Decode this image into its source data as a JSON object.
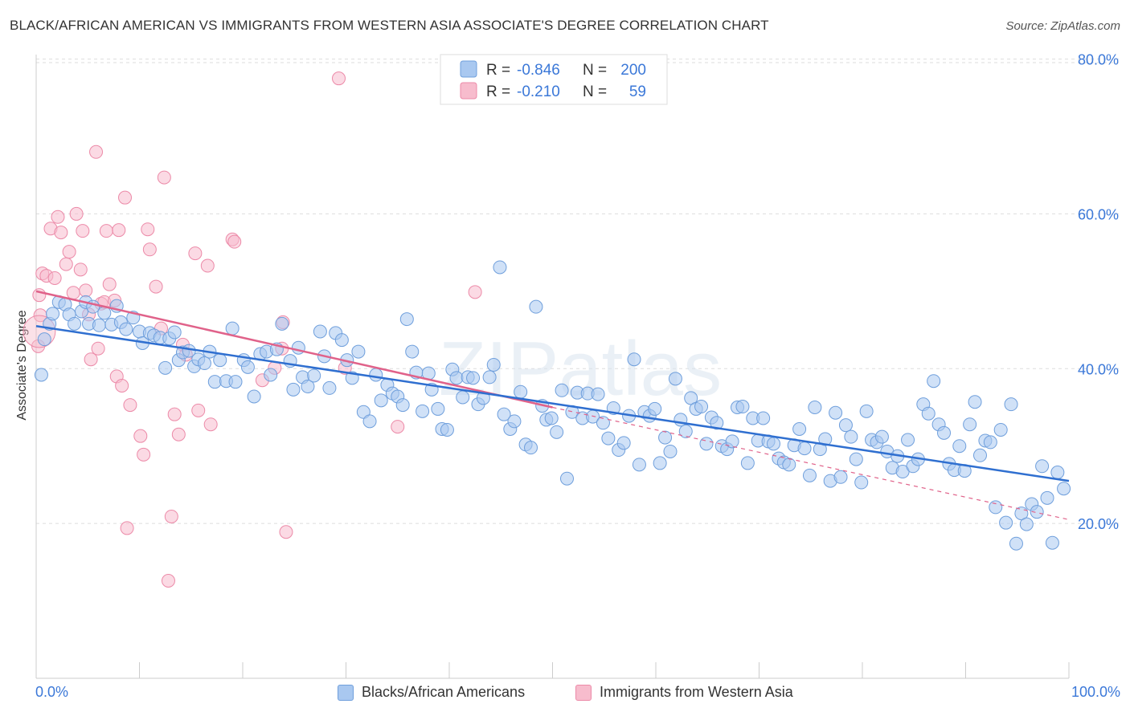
{
  "title": "BLACK/AFRICAN AMERICAN VS IMMIGRANTS FROM WESTERN ASIA ASSOCIATE'S DEGREE CORRELATION CHART",
  "source": "Source: ZipAtlas.com",
  "watermark": "ZIPatlas",
  "colors": {
    "blue_fill": "#a9c8f0",
    "blue_stroke": "#6f9fdc",
    "blue_line": "#2f6fd0",
    "pink_fill": "#f7bccd",
    "pink_stroke": "#ec8aa8",
    "pink_line": "#e0628a",
    "axis_text": "#3b78d8",
    "grid": "#dddddd"
  },
  "legend_top": {
    "rows": [
      {
        "r_label": "R =",
        "r_value": "-0.846",
        "n_label": "N =",
        "n_value": "200",
        "series": "blue"
      },
      {
        "r_label": "R =",
        "r_value": "-0.210",
        "n_label": "N =",
        "n_value": "59",
        "series": "pink"
      }
    ]
  },
  "legend_bottom": [
    {
      "label": "Blacks/African Americans",
      "series": "blue"
    },
    {
      "label": "Immigrants from Western Asia",
      "series": "pink"
    }
  ],
  "chart_data": {
    "type": "scatter",
    "title": "BLACK/AFRICAN AMERICAN VS IMMIGRANTS FROM WESTERN ASIA ASSOCIATE'S DEGREE CORRELATION CHART",
    "xlabel": "",
    "ylabel": "Associate's Degree",
    "xlim": [
      0,
      100
    ],
    "ylim": [
      0,
      84
    ],
    "x_tick_labels": [
      "0.0%",
      "100.0%"
    ],
    "y_ticks": [
      20,
      40,
      60,
      80
    ],
    "y_tick_labels": [
      "20.0%",
      "40.0%",
      "60.0%",
      "80.0%"
    ],
    "grid": true,
    "legend_position": "top-center",
    "series": [
      {
        "name": "Blacks/African Americans",
        "color": "#a9c8f0",
        "r": -0.846,
        "n": 200,
        "trend": {
          "x": [
            0,
            100
          ],
          "y": [
            45.5,
            25.5
          ]
        },
        "points": [
          [
            0.5,
            39.2
          ],
          [
            0.8,
            43.8
          ],
          [
            1.3,
            45.8
          ],
          [
            1.6,
            47.1
          ],
          [
            2.2,
            48.6
          ],
          [
            2.8,
            48.3
          ],
          [
            3.2,
            47.0
          ],
          [
            3.7,
            45.8
          ],
          [
            4.4,
            47.4
          ],
          [
            4.8,
            48.6
          ],
          [
            5.1,
            45.8
          ],
          [
            5.5,
            48.0
          ],
          [
            6.1,
            45.6
          ],
          [
            6.6,
            47.2
          ],
          [
            7.3,
            45.7
          ],
          [
            7.8,
            48.1
          ],
          [
            8.2,
            46.0
          ],
          [
            8.7,
            45.1
          ],
          [
            9.4,
            46.6
          ],
          [
            10.0,
            44.8
          ],
          [
            10.3,
            43.3
          ],
          [
            11.0,
            44.6
          ],
          [
            11.4,
            44.3
          ],
          [
            12.0,
            44.0
          ],
          [
            12.5,
            40.1
          ],
          [
            12.9,
            43.9
          ],
          [
            13.4,
            44.7
          ],
          [
            13.8,
            41.1
          ],
          [
            14.2,
            42.1
          ],
          [
            14.8,
            42.3
          ],
          [
            15.3,
            40.3
          ],
          [
            15.7,
            41.2
          ],
          [
            16.3,
            40.7
          ],
          [
            16.8,
            42.2
          ],
          [
            17.3,
            38.3
          ],
          [
            17.8,
            41.1
          ],
          [
            18.4,
            38.4
          ],
          [
            19.0,
            45.2
          ],
          [
            19.3,
            38.3
          ],
          [
            20.1,
            41.1
          ],
          [
            20.5,
            40.2
          ],
          [
            21.1,
            36.4
          ],
          [
            21.7,
            41.9
          ],
          [
            22.3,
            42.2
          ],
          [
            22.7,
            39.2
          ],
          [
            23.3,
            42.5
          ],
          [
            23.8,
            45.8
          ],
          [
            24.6,
            41.0
          ],
          [
            24.9,
            37.3
          ],
          [
            25.4,
            42.7
          ],
          [
            25.8,
            38.9
          ],
          [
            26.3,
            37.7
          ],
          [
            26.9,
            39.1
          ],
          [
            27.5,
            44.8
          ],
          [
            27.9,
            41.6
          ],
          [
            28.4,
            37.5
          ],
          [
            29.0,
            44.6
          ],
          [
            29.6,
            43.7
          ],
          [
            30.1,
            41.1
          ],
          [
            30.6,
            38.8
          ],
          [
            31.2,
            42.2
          ],
          [
            31.7,
            34.4
          ],
          [
            32.3,
            33.2
          ],
          [
            32.9,
            39.2
          ],
          [
            33.4,
            35.9
          ],
          [
            34.0,
            37.9
          ],
          [
            34.5,
            36.8
          ],
          [
            35.0,
            36.4
          ],
          [
            35.5,
            35.3
          ],
          [
            35.9,
            46.4
          ],
          [
            36.4,
            42.2
          ],
          [
            36.8,
            39.5
          ],
          [
            37.4,
            34.5
          ],
          [
            38.0,
            39.4
          ],
          [
            38.3,
            37.3
          ],
          [
            38.9,
            34.8
          ],
          [
            39.3,
            32.2
          ],
          [
            39.8,
            32.1
          ],
          [
            40.3,
            39.9
          ],
          [
            40.7,
            38.8
          ],
          [
            41.3,
            36.3
          ],
          [
            41.8,
            38.9
          ],
          [
            42.3,
            38.8
          ],
          [
            42.8,
            35.4
          ],
          [
            43.3,
            36.2
          ],
          [
            43.9,
            38.9
          ],
          [
            44.3,
            40.5
          ],
          [
            44.9,
            53.1
          ],
          [
            45.3,
            34.1
          ],
          [
            45.9,
            32.2
          ],
          [
            46.3,
            33.2
          ],
          [
            46.9,
            37.0
          ],
          [
            47.4,
            30.2
          ],
          [
            47.9,
            29.8
          ],
          [
            48.4,
            48.0
          ],
          [
            49.0,
            35.2
          ],
          [
            49.4,
            33.4
          ],
          [
            49.9,
            33.6
          ],
          [
            50.4,
            31.8
          ],
          [
            50.9,
            37.2
          ],
          [
            51.4,
            25.8
          ],
          [
            51.9,
            34.4
          ],
          [
            52.4,
            36.9
          ],
          [
            52.9,
            33.6
          ],
          [
            53.4,
            36.8
          ],
          [
            53.9,
            33.8
          ],
          [
            54.4,
            36.7
          ],
          [
            54.9,
            33.0
          ],
          [
            55.4,
            31.0
          ],
          [
            55.9,
            34.9
          ],
          [
            56.4,
            29.5
          ],
          [
            56.9,
            30.4
          ],
          [
            57.4,
            33.9
          ],
          [
            57.9,
            41.2
          ],
          [
            58.4,
            27.6
          ],
          [
            58.9,
            34.4
          ],
          [
            59.4,
            33.9
          ],
          [
            59.9,
            34.8
          ],
          [
            60.4,
            27.8
          ],
          [
            60.9,
            31.1
          ],
          [
            61.4,
            29.3
          ],
          [
            61.9,
            38.7
          ],
          [
            62.4,
            33.4
          ],
          [
            62.9,
            31.9
          ],
          [
            63.4,
            36.2
          ],
          [
            63.9,
            34.8
          ],
          [
            64.4,
            35.1
          ],
          [
            64.9,
            30.3
          ],
          [
            65.4,
            33.7
          ],
          [
            65.9,
            33.0
          ],
          [
            66.4,
            30.0
          ],
          [
            66.9,
            29.6
          ],
          [
            67.4,
            30.6
          ],
          [
            67.9,
            35.0
          ],
          [
            68.4,
            35.1
          ],
          [
            68.9,
            27.8
          ],
          [
            69.4,
            33.6
          ],
          [
            69.9,
            30.7
          ],
          [
            70.4,
            33.6
          ],
          [
            70.9,
            30.6
          ],
          [
            71.4,
            30.3
          ],
          [
            71.9,
            28.4
          ],
          [
            72.4,
            27.9
          ],
          [
            72.9,
            27.6
          ],
          [
            73.4,
            30.1
          ],
          [
            73.9,
            32.2
          ],
          [
            74.4,
            29.7
          ],
          [
            74.9,
            26.2
          ],
          [
            75.4,
            35.0
          ],
          [
            75.9,
            29.6
          ],
          [
            76.4,
            30.9
          ],
          [
            76.9,
            25.5
          ],
          [
            77.4,
            34.3
          ],
          [
            77.9,
            26.0
          ],
          [
            78.4,
            32.7
          ],
          [
            78.9,
            31.2
          ],
          [
            79.4,
            28.3
          ],
          [
            79.9,
            25.3
          ],
          [
            80.4,
            34.5
          ],
          [
            80.9,
            30.8
          ],
          [
            81.4,
            30.5
          ],
          [
            81.9,
            31.2
          ],
          [
            82.4,
            29.3
          ],
          [
            82.9,
            27.2
          ],
          [
            83.4,
            28.7
          ],
          [
            83.9,
            26.7
          ],
          [
            84.4,
            30.8
          ],
          [
            84.9,
            27.4
          ],
          [
            85.4,
            28.3
          ],
          [
            85.9,
            35.4
          ],
          [
            86.4,
            34.2
          ],
          [
            86.9,
            38.4
          ],
          [
            87.4,
            32.8
          ],
          [
            87.9,
            31.7
          ],
          [
            88.4,
            27.7
          ],
          [
            88.9,
            26.9
          ],
          [
            89.4,
            30.0
          ],
          [
            89.9,
            26.8
          ],
          [
            90.4,
            32.8
          ],
          [
            90.9,
            35.7
          ],
          [
            91.4,
            28.8
          ],
          [
            91.9,
            30.7
          ],
          [
            92.4,
            30.5
          ],
          [
            92.9,
            22.1
          ],
          [
            93.4,
            32.1
          ],
          [
            93.9,
            20.1
          ],
          [
            94.4,
            35.4
          ],
          [
            94.9,
            17.4
          ],
          [
            95.4,
            21.3
          ],
          [
            95.9,
            19.9
          ],
          [
            96.4,
            22.5
          ],
          [
            96.9,
            21.5
          ],
          [
            97.4,
            27.4
          ],
          [
            97.9,
            23.3
          ],
          [
            98.4,
            17.5
          ],
          [
            98.9,
            26.6
          ],
          [
            99.5,
            24.5
          ]
        ]
      },
      {
        "name": "Immigrants from Western Asia",
        "color": "#f7bccd",
        "r": -0.21,
        "n": 59,
        "trend_solid": {
          "x": [
            0,
            50
          ],
          "y": [
            50.0,
            35.0
          ]
        },
        "trend_dashed": {
          "x": [
            50,
            100
          ],
          "y": [
            35.0,
            20.5
          ]
        },
        "points": [
          [
            0.3,
            49.5
          ],
          [
            0.6,
            52.3
          ],
          [
            1.0,
            52.0
          ],
          [
            1.4,
            58.1
          ],
          [
            1.8,
            51.7
          ],
          [
            2.1,
            59.6
          ],
          [
            2.4,
            57.6
          ],
          [
            2.9,
            53.5
          ],
          [
            3.2,
            55.1
          ],
          [
            3.6,
            49.8
          ],
          [
            3.9,
            60.0
          ],
          [
            4.3,
            52.8
          ],
          [
            4.5,
            57.8
          ],
          [
            4.8,
            50.1
          ],
          [
            5.1,
            47.0
          ],
          [
            5.3,
            41.2
          ],
          [
            5.8,
            68.0
          ],
          [
            6.0,
            42.6
          ],
          [
            6.3,
            48.4
          ],
          [
            6.6,
            48.6
          ],
          [
            6.8,
            57.8
          ],
          [
            7.1,
            50.9
          ],
          [
            7.6,
            48.8
          ],
          [
            7.8,
            39.0
          ],
          [
            8.0,
            57.9
          ],
          [
            8.3,
            37.8
          ],
          [
            8.6,
            62.1
          ],
          [
            8.8,
            19.4
          ],
          [
            9.1,
            35.3
          ],
          [
            10.1,
            31.3
          ],
          [
            10.4,
            28.9
          ],
          [
            10.8,
            58.0
          ],
          [
            11.0,
            55.4
          ],
          [
            11.6,
            50.6
          ],
          [
            12.1,
            45.2
          ],
          [
            12.4,
            64.7
          ],
          [
            12.8,
            12.6
          ],
          [
            13.1,
            20.9
          ],
          [
            13.4,
            34.1
          ],
          [
            13.8,
            31.5
          ],
          [
            14.2,
            43.1
          ],
          [
            14.5,
            41.8
          ],
          [
            15.4,
            54.9
          ],
          [
            15.7,
            34.6
          ],
          [
            16.6,
            53.3
          ],
          [
            16.9,
            32.8
          ],
          [
            19.0,
            56.7
          ],
          [
            19.2,
            56.4
          ],
          [
            21.9,
            38.5
          ],
          [
            23.1,
            40.1
          ],
          [
            23.8,
            42.6
          ],
          [
            24.2,
            18.9
          ],
          [
            23.9,
            46.0
          ],
          [
            29.3,
            77.5
          ],
          [
            29.9,
            40.1
          ],
          [
            35.0,
            32.5
          ],
          [
            42.5,
            49.9
          ],
          [
            0.2,
            42.9
          ],
          [
            0.4,
            46.9
          ]
        ]
      }
    ]
  }
}
